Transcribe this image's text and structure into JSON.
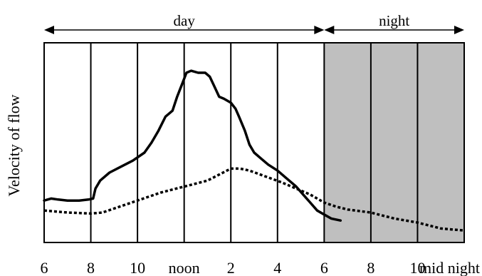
{
  "chart_data": {
    "type": "line",
    "title": "",
    "xlabel": "",
    "ylabel": "Velocity of flow",
    "x_tick_labels": [
      "6",
      "8",
      "10",
      "noon",
      "2",
      "4",
      "6",
      "8",
      "10",
      "mid night"
    ],
    "periods": [
      {
        "label": "day",
        "shaded": false
      },
      {
        "label": "night",
        "shaded": true,
        "color": "#bfbfbf"
      }
    ],
    "x_range": [
      6,
      24
    ],
    "y_range": [
      0,
      100
    ],
    "grid": "vertical lines every 2 hours",
    "series": [
      {
        "style": "solid",
        "color": "#000000",
        "points": [
          [
            6.0,
            21
          ],
          [
            6.3,
            22
          ],
          [
            6.6,
            21.5
          ],
          [
            7.0,
            21
          ],
          [
            7.5,
            21
          ],
          [
            7.9,
            21.5
          ],
          [
            8.1,
            22
          ],
          [
            8.2,
            27
          ],
          [
            8.4,
            31
          ],
          [
            8.8,
            35
          ],
          [
            9.3,
            38
          ],
          [
            9.8,
            41
          ],
          [
            10.3,
            45
          ],
          [
            10.6,
            50
          ],
          [
            10.9,
            56
          ],
          [
            11.2,
            63
          ],
          [
            11.5,
            66
          ],
          [
            11.7,
            73
          ],
          [
            11.9,
            79
          ],
          [
            12.1,
            85
          ],
          [
            12.3,
            86
          ],
          [
            12.6,
            85
          ],
          [
            12.9,
            85
          ],
          [
            13.1,
            83
          ],
          [
            13.3,
            78
          ],
          [
            13.5,
            73
          ],
          [
            13.7,
            72
          ],
          [
            14.0,
            70
          ],
          [
            14.2,
            67
          ],
          [
            14.35,
            63
          ],
          [
            14.6,
            56
          ],
          [
            14.8,
            49
          ],
          [
            15.0,
            45
          ],
          [
            15.3,
            42
          ],
          [
            15.6,
            39
          ],
          [
            16.0,
            36
          ],
          [
            16.4,
            32
          ],
          [
            16.8,
            28
          ],
          [
            17.1,
            24
          ],
          [
            17.4,
            20
          ],
          [
            17.7,
            16
          ],
          [
            18.0,
            14
          ],
          [
            18.3,
            12
          ],
          [
            18.7,
            11
          ]
        ]
      },
      {
        "style": "dotted",
        "color": "#000000",
        "points": [
          [
            6.0,
            16
          ],
          [
            6.5,
            15.5
          ],
          [
            7.0,
            15
          ],
          [
            8.0,
            14.5
          ],
          [
            8.5,
            15
          ],
          [
            9.0,
            17
          ],
          [
            10.0,
            21
          ],
          [
            11.0,
            25
          ],
          [
            12.0,
            28
          ],
          [
            13.0,
            31
          ],
          [
            13.5,
            34
          ],
          [
            14.0,
            37
          ],
          [
            14.4,
            37
          ],
          [
            14.8,
            36
          ],
          [
            15.5,
            33
          ],
          [
            16.2,
            30
          ],
          [
            16.8,
            27
          ],
          [
            17.4,
            24
          ],
          [
            18.0,
            20
          ],
          [
            18.5,
            18
          ],
          [
            19.0,
            16.5
          ],
          [
            20.0,
            15
          ],
          [
            21.0,
            12
          ],
          [
            22.0,
            10
          ],
          [
            23.0,
            7
          ],
          [
            24.0,
            6
          ]
        ]
      }
    ]
  }
}
